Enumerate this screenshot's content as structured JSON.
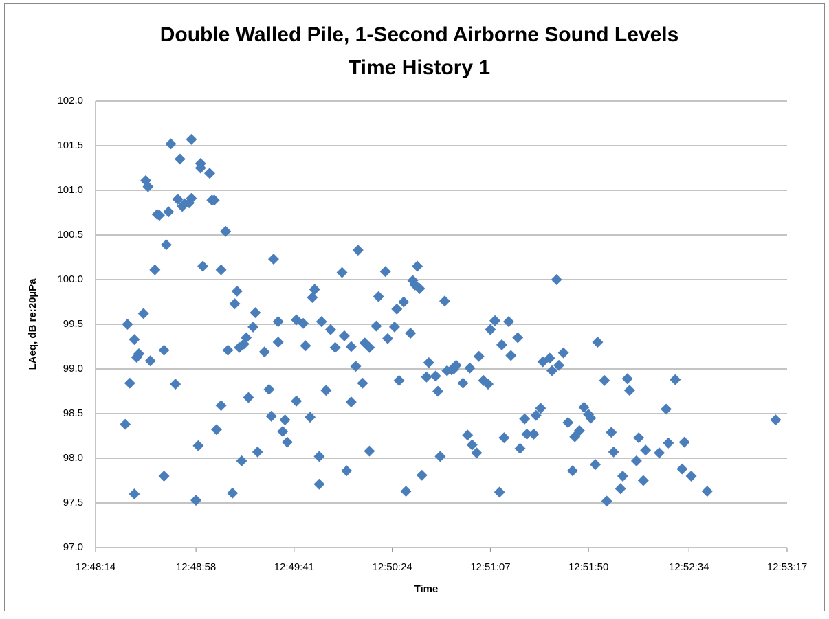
{
  "chart_data": {
    "type": "scatter",
    "title": "Double Walled Pile, 1-Second Airborne Sound Levels",
    "subtitle": "Time History 1",
    "x_label": "Time",
    "y_label": "LAeq, dB re:20µPa",
    "color": "#4a7ebb",
    "grid": true,
    "xlim": [
      "12:48:14",
      "12:53:17"
    ],
    "xticks": [
      "12:48:14",
      "12:48:58",
      "12:49:41",
      "12:50:24",
      "12:51:07",
      "12:51:50",
      "12:52:34",
      "12:53:17"
    ],
    "ylim": [
      97,
      102
    ],
    "yticks": [
      {
        "value": 97,
        "label": "97.0"
      },
      {
        "value": 97.5,
        "label": "97.5"
      },
      {
        "value": 98,
        "label": "98.0"
      },
      {
        "value": 98.5,
        "label": "98.5"
      },
      {
        "value": 99,
        "label": "99.0"
      },
      {
        "value": 99.5,
        "label": "99.5"
      },
      {
        "value": 100,
        "label": "100.0"
      },
      {
        "value": 100.5,
        "label": "100.5"
      },
      {
        "value": 101,
        "label": "101.0"
      },
      {
        "value": 101.5,
        "label": "101.5"
      },
      {
        "value": 102,
        "label": "102.0"
      }
    ],
    "x": [
      "12:48:27",
      "12:48:28",
      "12:48:29",
      "12:48:31",
      "12:48:31",
      "12:48:32",
      "12:48:33",
      "12:48:35",
      "12:48:36",
      "12:48:37",
      "12:48:38",
      "12:48:40",
      "12:48:41",
      "12:48:42",
      "12:48:44",
      "12:48:44",
      "12:48:45",
      "12:48:46",
      "12:48:47",
      "12:48:49",
      "12:48:50",
      "12:48:51",
      "12:48:52",
      "12:48:53",
      "12:48:55",
      "12:48:56",
      "12:48:56",
      "12:48:58",
      "12:48:59",
      "12:49:00",
      "12:49:00",
      "12:49:01",
      "12:49:04",
      "12:49:05",
      "12:49:06",
      "12:49:07",
      "12:49:09",
      "12:49:09",
      "12:49:11",
      "12:49:12",
      "12:49:14",
      "12:49:15",
      "12:49:16",
      "12:49:17",
      "12:49:18",
      "12:49:19",
      "12:49:20",
      "12:49:21",
      "12:49:23",
      "12:49:24",
      "12:49:25",
      "12:49:28",
      "12:49:30",
      "12:49:31",
      "12:49:32",
      "12:49:34",
      "12:49:34",
      "12:49:36",
      "12:49:37",
      "12:49:38",
      "12:49:42",
      "12:49:42",
      "12:49:45",
      "12:49:46",
      "12:49:48",
      "12:49:49",
      "12:49:50",
      "12:49:52",
      "12:49:52",
      "12:49:53",
      "12:49:55",
      "12:49:57",
      "12:49:59",
      "12:50:02",
      "12:50:03",
      "12:50:04",
      "12:50:06",
      "12:50:06",
      "12:50:08",
      "12:50:09",
      "12:50:11",
      "12:50:12",
      "12:50:14",
      "12:50:14",
      "12:50:17",
      "12:50:18",
      "12:50:21",
      "12:50:22",
      "12:50:25",
      "12:50:26",
      "12:50:27",
      "12:50:29",
      "12:50:30",
      "12:50:32",
      "12:50:33",
      "12:50:34",
      "12:50:35",
      "12:50:36",
      "12:50:37",
      "12:50:39",
      "12:50:40",
      "12:50:43",
      "12:50:44",
      "12:50:45",
      "12:50:47",
      "12:50:48",
      "12:50:50",
      "12:50:51",
      "12:50:52",
      "12:50:55",
      "12:50:57",
      "12:50:58",
      "12:50:59",
      "12:51:01",
      "12:51:02",
      "12:51:04",
      "12:51:06",
      "12:51:07",
      "12:51:09",
      "12:51:11",
      "12:51:12",
      "12:51:13",
      "12:51:15",
      "12:51:16",
      "12:51:19",
      "12:51:20",
      "12:51:22",
      "12:51:23",
      "12:51:26",
      "12:51:27",
      "12:51:29",
      "12:51:30",
      "12:51:33",
      "12:51:34",
      "12:51:36",
      "12:51:37",
      "12:51:39",
      "12:51:41",
      "12:51:43",
      "12:51:44",
      "12:51:46",
      "12:51:48",
      "12:51:50",
      "12:51:51",
      "12:51:53",
      "12:51:54",
      "12:51:57",
      "12:51:58",
      "12:52:00",
      "12:52:01",
      "12:52:04",
      "12:52:05",
      "12:52:07",
      "12:52:08",
      "12:52:11",
      "12:52:12",
      "12:52:14",
      "12:52:15",
      "12:52:21",
      "12:52:24",
      "12:52:25",
      "12:52:28",
      "12:52:31",
      "12:52:32",
      "12:52:35",
      "12:52:42",
      "12:53:12"
    ],
    "values": [
      98.38,
      99.5,
      98.84,
      97.6,
      99.33,
      99.13,
      99.17,
      99.62,
      101.11,
      101.04,
      99.09,
      100.11,
      100.73,
      100.72,
      99.21,
      97.8,
      100.39,
      100.76,
      101.52,
      98.83,
      100.9,
      101.35,
      100.82,
      100.85,
      100.86,
      100.91,
      101.57,
      97.53,
      98.14,
      101.3,
      101.25,
      100.15,
      101.19,
      100.89,
      100.89,
      98.32,
      100.11,
      98.59,
      100.54,
      99.21,
      97.61,
      99.73,
      99.87,
      99.24,
      97.97,
      99.28,
      99.35,
      98.68,
      99.47,
      99.63,
      98.07,
      99.19,
      98.77,
      98.47,
      100.23,
      99.3,
      99.53,
      98.3,
      98.43,
      98.18,
      98.64,
      99.55,
      99.51,
      99.26,
      98.46,
      99.8,
      99.89,
      98.02,
      97.71,
      99.53,
      98.76,
      99.44,
      99.24,
      100.08,
      99.37,
      97.86,
      99.25,
      98.63,
      99.03,
      100.33,
      98.84,
      99.29,
      99.24,
      98.08,
      99.48,
      99.81,
      100.09,
      99.34,
      99.47,
      99.67,
      98.87,
      99.75,
      97.63,
      99.4,
      99.99,
      99.94,
      100.15,
      99.9,
      97.81,
      98.91,
      99.07,
      98.92,
      98.75,
      98.02,
      99.76,
      98.98,
      98.99,
      99.0,
      99.04,
      98.84,
      98.26,
      99.01,
      98.15,
      98.06,
      99.14,
      98.87,
      98.83,
      99.44,
      99.54,
      97.62,
      99.27,
      98.23,
      99.53,
      99.15,
      99.35,
      98.11,
      98.44,
      98.27,
      98.27,
      98.48,
      98.56,
      99.08,
      99.12,
      98.98,
      100.0,
      99.04,
      99.18,
      98.4,
      97.86,
      98.24,
      98.31,
      98.57,
      98.49,
      98.45,
      97.93,
      99.3,
      98.87,
      97.52,
      98.29,
      98.07,
      97.66,
      97.8,
      98.89,
      98.76,
      97.97,
      98.23,
      97.75,
      98.09,
      98.06,
      98.55,
      98.17,
      98.88,
      97.88,
      98.18,
      97.8,
      97.63,
      98.43
    ]
  }
}
